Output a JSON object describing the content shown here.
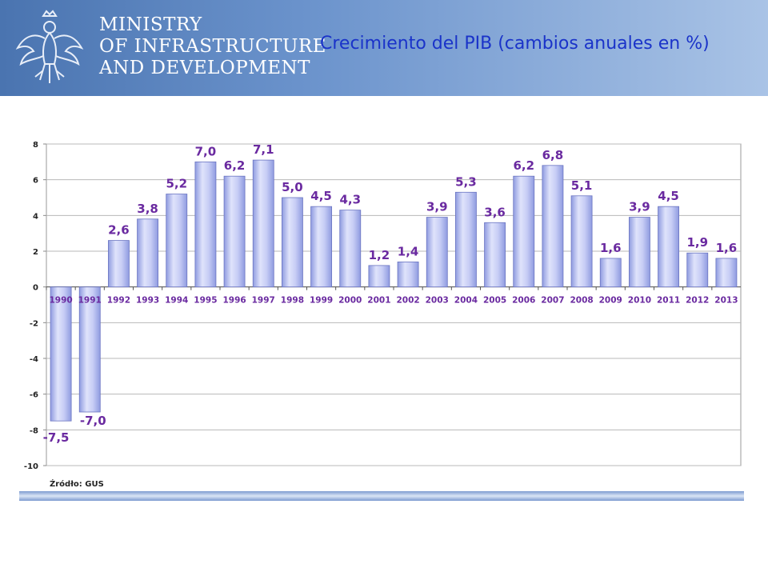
{
  "header": {
    "ministry_lines": [
      "MINISTRY",
      "OF INFRASTRUCTURE",
      "AND DEVELOPMENT"
    ],
    "title": "Crecimiento del PIB  (cambios anuales en %)",
    "logo_icon": "polish-eagle-icon"
  },
  "chart_data": {
    "type": "bar",
    "categories": [
      "1990",
      "1991",
      "1992",
      "1993",
      "1994",
      "1995",
      "1996",
      "1997",
      "1998",
      "1999",
      "2000",
      "2001",
      "2002",
      "2003",
      "2004",
      "2005",
      "2006",
      "2007",
      "2008",
      "2009",
      "2010",
      "2011",
      "2012",
      "2013"
    ],
    "values": [
      -7.5,
      -7.0,
      2.6,
      3.8,
      5.2,
      7.0,
      6.2,
      7.1,
      5.0,
      4.5,
      4.3,
      1.2,
      1.4,
      3.9,
      5.3,
      3.6,
      6.2,
      6.8,
      5.1,
      1.6,
      3.9,
      4.5,
      1.9,
      1.6
    ],
    "data_labels": [
      "-7,5",
      "-7,0",
      "2,6",
      "3,8",
      "5,2",
      "7,0",
      "6,2",
      "7,1",
      "5,0",
      "4,5",
      "4,3",
      "1,2",
      "1,4",
      "3,9",
      "5,3",
      "3,6",
      "6,2",
      "6,8",
      "5,1",
      "1,6",
      "3,9",
      "4,5",
      "1,9",
      "1,6"
    ],
    "y_ticks": [
      "8",
      "6",
      "4",
      "2",
      "0",
      "-2",
      "-4",
      "-6",
      "-8",
      "-10"
    ],
    "ylim": [
      -10,
      8
    ],
    "grid": true,
    "colors": {
      "bar": "#b4bff0",
      "label": "#6a2aa0",
      "year": "#6a2aa0"
    }
  },
  "source_label": "Źródło: GUS"
}
